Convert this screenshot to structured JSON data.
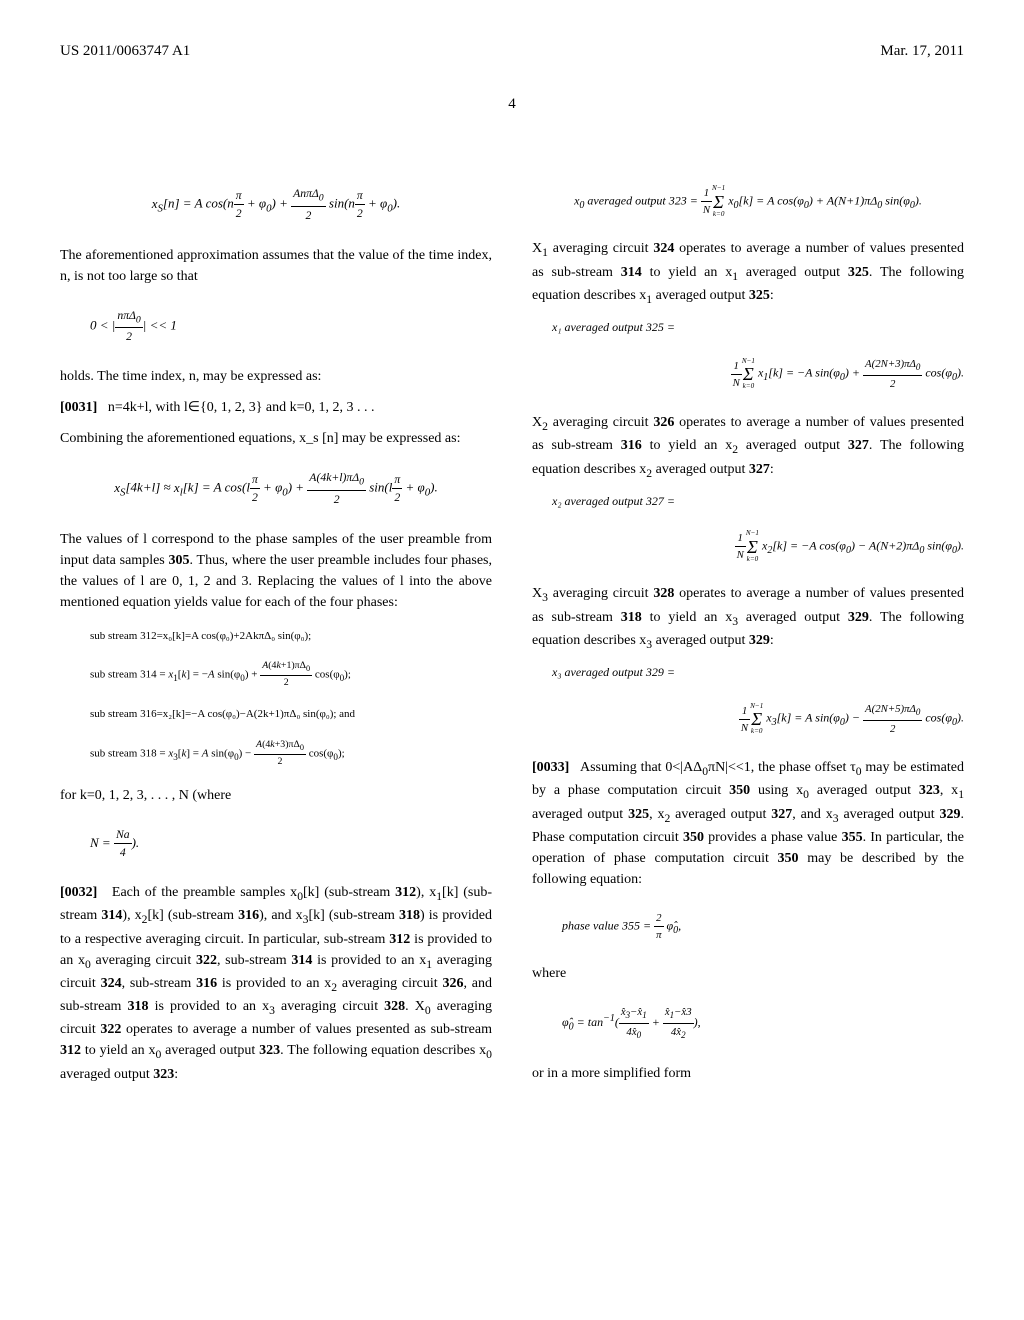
{
  "header": {
    "pub_number": "US 2011/0063747 A1",
    "date": "Mar. 17, 2011"
  },
  "page_number": "4",
  "left_column": {
    "eq1": "x_S[n] = A cos(nπ/2 + φ₀) + (AnπΔ₀/2) sin(nπ/2 + φ₀).",
    "para1": "The aforementioned approximation assumes that the value of the time index, n, is not too large so that",
    "eq2": "0 < |nπΔ₀/2| << 1",
    "para2": "holds. The time index, n, may be expressed as:",
    "para3_label": "[0031]",
    "para3": "n=4k+l, with l∈{0, 1, 2, 3} and k=0, 1, 2, 3 . . .",
    "para4": "Combining the aforementioned equations, x_s [n] may be expressed as:",
    "eq3": "x_S[4k+l] ≈ x_l[k] = A cos(lπ/2 + φ₀) + (A(4k+l)πΔ₀/2) sin(lπ/2 + φ₀).",
    "para5": "The values of l correspond to the phase samples of the user preamble from input data samples 305. Thus, where the user preamble includes four phases, the values of l are 0, 1, 2 and 3. Replacing the values of l into the above mentioned equation yields value for each of the four phases:",
    "sub_eq1": "sub stream 312=x₀[k]=A cos(φ₀)+2AkπΔ₀ sin(φ₀);",
    "sub_eq2": "sub stream 314 = x₁[k] = −A sin(φ₀) + (A(4k+1)πΔ₀/2) cos(φ₀);",
    "sub_eq3": "sub stream 316=x₂[k]=−A cos(φ₀)−A(2k+1)πΔ₀ sin(φ₀); and",
    "sub_eq4": "sub stream 318 = x₃[k] = A sin(φ₀) − (A(4k+3)πΔ₀/2) cos(φ₀);",
    "para6": "for k=0, 1, 2, 3, . . . , N (where",
    "eq4": "N = Na/4).",
    "para7_label": "[0032]",
    "para7": "Each of the preamble samples x₀[k] (sub-stream 312), x₁[k] (sub-stream 314), x₂[k] (sub-stream 316), and x₃[k] (sub-stream 318) is provided to a respective averaging circuit. In particular, sub-stream 312 is provided to an x₀ averaging circuit 322, sub-stream 314 is provided to an x₁ averaging circuit 324, sub-stream 316 is provided to an x₂ averaging circuit 326, and sub-stream 318 is provided to an x₃ averaging circuit 328. X₀ averaging circuit 322 operates to average a number of values presented as sub-stream 312 to yield an x₀ averaged output 323. The following equation describes x₀ averaged output 323:"
  },
  "right_column": {
    "eq1_label": "x₀ averaged output 323 =",
    "eq1": "(1/N)Σ x₀[k] = A cos(φ₀) + A(N+1)πΔ₀ sin(φ₀).",
    "para1": "X₁ averaging circuit 324 operates to average a number of values presented as sub-stream 314 to yield an x₁ averaged output 325. The following equation describes x₁ averaged output 325:",
    "eq2_label": "x₁ averaged output 325 =",
    "eq2": "(1/N)Σ x₁[k] = −A sin(φ₀) + (A(2N+3)πΔ₀/2) cos(φ₀).",
    "para2": "X₂ averaging circuit 326 operates to average a number of values presented as sub-stream 316 to yield an x₂ averaged output 327. The following equation describes x₂ averaged output 327:",
    "eq3_label": "x₂ averaged output 327 =",
    "eq3": "(1/N)Σ x₂[k] = −A cos(φ₀) − A(N+2)πΔ₀ sin(φ₀).",
    "para3": "X₃ averaging circuit 328 operates to average a number of values presented as sub-stream 318 to yield an x₃ averaged output 329. The following equation describes x₃ averaged output 329:",
    "eq4_label": "x₃ averaged output 329 =",
    "eq4": "(1/N)Σ x₃[k] = A sin(φ₀) − (A(2N+5)πΔ₀/2) cos(φ₀).",
    "para4_label": "[0033]",
    "para4": "Assuming that 0<|AΔ₀πN|<<1, the phase offset τ₀ may be estimated by a phase computation circuit 350 using x₀ averaged output 323, x₁ averaged output 325, x₂ averaged output 327, and x₃ averaged output 329. Phase computation circuit 350 provides a phase value 355. In particular, the operation of phase computation circuit 350 may be described by the following equation:",
    "eq5": "phase value 355 = (2/π) φ̂₀,",
    "para5": "where",
    "eq6": "φ̂₀ = tan⁻¹((x̂₃−x̂₁)/(4x̂₀) + (x̂₁−x̂₃)/(4x̂₂)),",
    "para6": "or in a more simplified form"
  }
}
